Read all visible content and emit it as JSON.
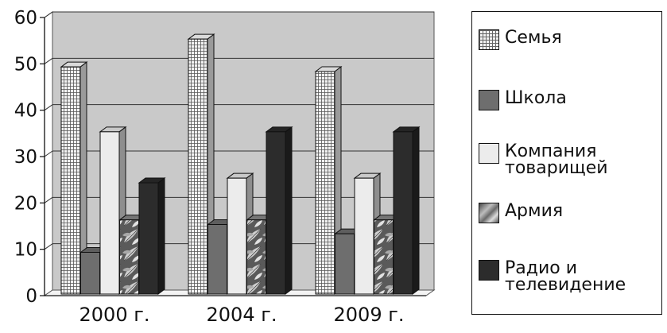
{
  "chart_data": {
    "type": "bar",
    "categories": [
      "2000 г.",
      "2004 г.",
      "2009 г."
    ],
    "series": [
      {
        "name": "Семья",
        "values": [
          49,
          55,
          48
        ],
        "color": "#e6e6e6",
        "pattern": "grid"
      },
      {
        "name": "Школа",
        "values": [
          9,
          15,
          13
        ],
        "color": "#6e6e6e",
        "pattern": "solid"
      },
      {
        "name": "Компания\nтоварищей",
        "values": [
          35,
          25,
          25
        ],
        "color": "#ececec",
        "pattern": "solid"
      },
      {
        "name": "Армия",
        "values": [
          16,
          16,
          16
        ],
        "color": "#8a8a8a",
        "pattern": "leaves"
      },
      {
        "name": "Радио и\nтелевидение",
        "values": [
          24,
          35,
          35
        ],
        "color": "#2c2c2c",
        "pattern": "solid"
      }
    ],
    "ylim": [
      0,
      60
    ],
    "yticks": [
      "0",
      "10",
      "20",
      "30",
      "40",
      "50",
      "60"
    ],
    "grid": true,
    "legend_position": "right",
    "chart_style": "3d-clustered-bar"
  }
}
